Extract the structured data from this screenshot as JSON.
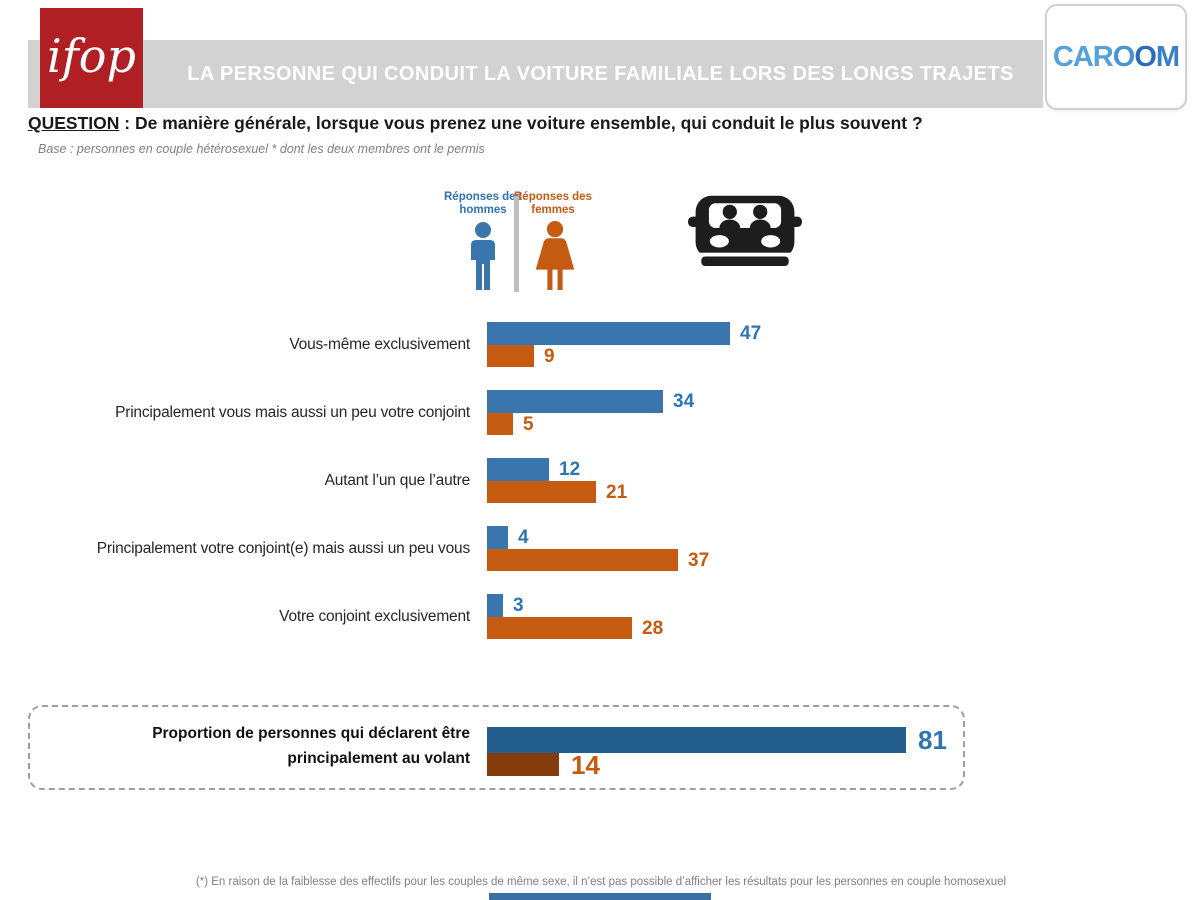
{
  "header": {
    "title": "LA PERSONNE QUI CONDUIT LA VOITURE FAMILIALE LORS DES LONGS TRAJETS",
    "ifop_logo_text": "ifop",
    "caroom_logo_segments": [
      {
        "text": "CAR",
        "color": "#56A1DC"
      },
      {
        "text": "O",
        "color": "#4B94D4"
      },
      {
        "text": "O",
        "color": "#2B6CB4"
      },
      {
        "text": "M",
        "color": "#3A80C8"
      }
    ]
  },
  "question": {
    "label": "QUESTION",
    "separator": " :  ",
    "text": "De manière générale, lorsque vous prenez une voiture ensemble, qui conduit le plus souvent ?",
    "base_note": "Base : personnes en couple hétérosexuel * dont les deux membres ont le permis"
  },
  "legend": {
    "men_label": "Réponses des hommes",
    "women_label": "Réponses des femmes",
    "men_color": "#2E74B5",
    "women_color": "#C55A11",
    "men_icon_color": "#3A76AD",
    "women_icon_color": "#C55A11"
  },
  "chart_data": {
    "type": "bar",
    "orientation": "horizontal",
    "x_range": [
      0,
      100
    ],
    "categories": [
      "Vous-même exclusivement",
      "Principalement vous mais aussi un peu votre conjoint",
      "Autant l’un que l’autre",
      "Principalement votre conjoint(e) mais aussi un peu vous",
      "Votre conjoint exclusivement"
    ],
    "series": [
      {
        "name": "Réponses des hommes",
        "color": "#3A76AD",
        "label_color": "#2E74B5",
        "values": [
          47,
          34,
          12,
          4,
          3
        ]
      },
      {
        "name": "Réponses des femmes",
        "color": "#C55A11",
        "label_color": "#C55A11",
        "values": [
          9,
          5,
          21,
          37,
          28
        ]
      }
    ],
    "summary": {
      "label_lines": [
        "Proportion de personnes qui déclarent être",
        "principalement au volant"
      ],
      "men_value": 81,
      "women_value": 14,
      "men_bar_color": "#235E8C",
      "women_bar_color": "#843C0C",
      "men_label_color": "#2E74B5",
      "women_label_color": "#C55A11"
    }
  },
  "footnote": "(*) En raison de la faiblesse des effectifs pour les couples de même sexe, il n’est pas possible d’afficher les résultats pour les personnes en couple homosexuel"
}
